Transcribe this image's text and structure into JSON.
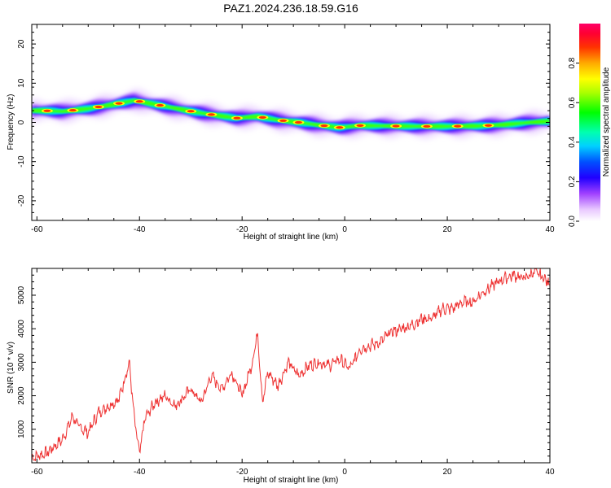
{
  "title": "PAZ1.2024.236.18.59.G16",
  "chart_data": [
    {
      "type": "heatmap",
      "xlabel": "Height of straight line (km)",
      "ylabel": "Frequency (Hz)",
      "xlim": [
        -61,
        40
      ],
      "ylim": [
        -25,
        25
      ],
      "xticks": [
        -60,
        -40,
        -20,
        0,
        20,
        40
      ],
      "yticks": [
        -20,
        -10,
        0,
        10,
        20
      ],
      "ridge": {
        "x": [
          -59,
          -55,
          -50,
          -45,
          -41,
          -37,
          -33,
          -29,
          -25,
          -21,
          -17,
          -13,
          -9,
          -5,
          -1,
          3,
          8,
          14,
          20,
          26,
          31,
          36,
          40
        ],
        "frequency": [
          3.0,
          2.8,
          3.5,
          4.6,
          5.6,
          4.6,
          3.6,
          2.6,
          1.8,
          1.1,
          1.5,
          0.6,
          0.0,
          -0.7,
          -1.3,
          -0.8,
          -0.9,
          -1.0,
          -1.0,
          -0.9,
          -0.6,
          0.0,
          0.3
        ]
      },
      "hot_spots_x": [
        -58,
        -53,
        -48,
        -44,
        -40,
        -36,
        -30,
        -26,
        -21,
        -16,
        -12,
        -9,
        -4,
        -1,
        3,
        10,
        16,
        22,
        28
      ]
    },
    {
      "type": "line",
      "xlabel": "Height of straight line (km)",
      "ylabel": "SNR (10 * v/v)",
      "xlim": [
        -61,
        40
      ],
      "ylim": [
        0,
        5800
      ],
      "xticks": [
        -60,
        -40,
        -20,
        0,
        20,
        40
      ],
      "yticks": [
        1000,
        2000,
        3000,
        4000,
        5000
      ],
      "series": [
        {
          "color": "#ee3333",
          "x": [
            -61,
            -58,
            -55,
            -53,
            -52,
            -50,
            -48,
            -46,
            -44,
            -42,
            -41,
            -40,
            -39,
            -37,
            -35,
            -33,
            -30,
            -28,
            -26,
            -24,
            -22,
            -20,
            -18,
            -17,
            -16,
            -15,
            -13,
            -11,
            -9,
            -7,
            -5,
            -3,
            -1,
            1,
            3,
            5,
            7,
            9,
            11,
            13,
            15,
            17,
            19,
            21,
            23,
            25,
            27,
            29,
            31,
            33,
            35,
            37,
            39,
            40
          ],
          "y": [
            150,
            300,
            700,
            1400,
            1100,
            900,
            1500,
            1700,
            1900,
            3000,
            1300,
            250,
            1300,
            1800,
            2000,
            1700,
            2200,
            1800,
            2600,
            2200,
            2700,
            2000,
            3000,
            3900,
            1800,
            2700,
            2300,
            3000,
            2600,
            2900,
            3000,
            2900,
            3100,
            2800,
            3400,
            3500,
            3600,
            3900,
            4000,
            4100,
            4300,
            4300,
            4600,
            4600,
            4800,
            4800,
            5100,
            5300,
            5500,
            5600,
            5500,
            5700,
            5500,
            5300
          ]
        }
      ]
    }
  ],
  "colorbar": {
    "label": "Normalized spectral amplitude",
    "ticks": [
      "0.0",
      "0.2",
      "0.4",
      "0.6",
      "0.8"
    ],
    "tick_values": [
      0,
      0.2,
      0.4,
      0.6,
      0.8
    ],
    "range": [
      0,
      1
    ],
    "colors": [
      "#ffffff",
      "#b566ff",
      "#6a00ff",
      "#0000ff",
      "#00bfff",
      "#00ffff",
      "#00ff66",
      "#33ff00",
      "#ccff00",
      "#ffff00",
      "#ffaa00",
      "#ff5500",
      "#ff0000",
      "#ff0066"
    ]
  }
}
